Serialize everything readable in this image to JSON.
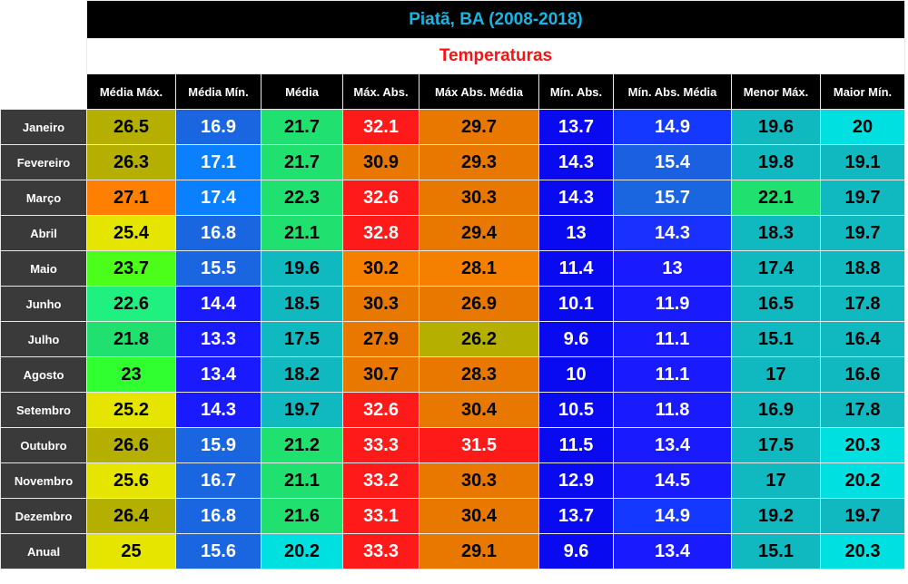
{
  "table": {
    "title": "Piatã, BA (2008-2018)",
    "subtitle": "Temperaturas",
    "columns": [
      "Média Máx.",
      "Média Mín.",
      "Média",
      "Máx. Abs.",
      "Máx Abs. Média",
      "Mín. Abs.",
      "Mín. Abs. Média",
      "Menor Máx.",
      "Maior Mín."
    ],
    "rows": [
      {
        "label": "Janeiro",
        "values": [
          26.5,
          16.9,
          21.7,
          32.1,
          29.7,
          13.7,
          14.9,
          19.6,
          20
        ],
        "colors": [
          "#b5b000",
          "#1a66e0",
          "#20e070",
          "#ff1a1a",
          "#e87800",
          "#0a0af0",
          "#1438ff",
          "#10b8c0",
          "#00e0e0"
        ]
      },
      {
        "label": "Fevereiro",
        "values": [
          26.3,
          17.1,
          21.7,
          30.9,
          29.3,
          14.3,
          15.4,
          19.8,
          19.1
        ],
        "colors": [
          "#b5b000",
          "#0a80ff",
          "#20e070",
          "#e87800",
          "#e87800",
          "#0a0af0",
          "#1a60e0",
          "#10b8c0",
          "#10b8c0"
        ]
      },
      {
        "label": "Março",
        "values": [
          27.1,
          17.4,
          22.3,
          32.6,
          30.3,
          14.3,
          15.7,
          22.1,
          19.7
        ],
        "colors": [
          "#ff8000",
          "#0a80ff",
          "#20e070",
          "#ff1a1a",
          "#e87800",
          "#0a0af0",
          "#1a66e0",
          "#20e070",
          "#10b8c0"
        ]
      },
      {
        "label": "Abril",
        "values": [
          25.4,
          16.8,
          21.1,
          32.8,
          29.4,
          13,
          14.3,
          18.3,
          19.7
        ],
        "colors": [
          "#e5e500",
          "#1a66e0",
          "#20e070",
          "#ff1a1a",
          "#e87800",
          "#0a0af0",
          "#1a30ff",
          "#10b8c0",
          "#10b8c0"
        ]
      },
      {
        "label": "Maio",
        "values": [
          23.7,
          15.5,
          19.6,
          30.2,
          28.1,
          11.4,
          13,
          17.4,
          18.8
        ],
        "colors": [
          "#4cff1a",
          "#1a66e0",
          "#10b8c0",
          "#f58000",
          "#f58000",
          "#0a0af0",
          "#1a1aff",
          "#10b8c0",
          "#10b8c0"
        ]
      },
      {
        "label": "Junho",
        "values": [
          22.6,
          14.4,
          18.5,
          30.3,
          26.9,
          10.1,
          11.9,
          16.5,
          17.8
        ],
        "colors": [
          "#20f080",
          "#1a1aff",
          "#10b8c0",
          "#e87800",
          "#e87800",
          "#0a0af0",
          "#1a1aff",
          "#10b8c0",
          "#10b8c0"
        ]
      },
      {
        "label": "Julho",
        "values": [
          21.8,
          13.3,
          17.5,
          27.9,
          26.2,
          9.6,
          11.1,
          15.1,
          16.4
        ],
        "colors": [
          "#20e070",
          "#1a1aff",
          "#10b8c0",
          "#e87800",
          "#b5b000",
          "#0a0af0",
          "#1a1aff",
          "#10b8c0",
          "#10b8c0"
        ]
      },
      {
        "label": "Agosto",
        "values": [
          23,
          13.4,
          18.2,
          30.7,
          28.3,
          10,
          11.1,
          17,
          16.6
        ],
        "colors": [
          "#30ff30",
          "#1a1aff",
          "#10b8c0",
          "#e87800",
          "#e87800",
          "#0a0af0",
          "#1a1aff",
          "#10b8c0",
          "#10b8c0"
        ]
      },
      {
        "label": "Setembro",
        "values": [
          25.2,
          14.3,
          19.7,
          32.6,
          30.4,
          10.5,
          11.8,
          16.9,
          17.8
        ],
        "colors": [
          "#e5e500",
          "#1a1aff",
          "#10b8c0",
          "#ff1a1a",
          "#e87800",
          "#0a0af0",
          "#1a1aff",
          "#10b8c0",
          "#10b8c0"
        ]
      },
      {
        "label": "Outubro",
        "values": [
          26.6,
          15.9,
          21.2,
          33.3,
          31.5,
          11.5,
          13.4,
          17.5,
          20.3
        ],
        "colors": [
          "#b5b000",
          "#1a66e0",
          "#20e070",
          "#ff1a1a",
          "#ff1a1a",
          "#0a0af0",
          "#1a1aff",
          "#10b8c0",
          "#00e0e0"
        ]
      },
      {
        "label": "Novembro",
        "values": [
          25.6,
          16.7,
          21.1,
          33.2,
          30.3,
          12.9,
          14.5,
          17,
          20.2
        ],
        "colors": [
          "#e5e500",
          "#1a66e0",
          "#20e070",
          "#ff1a1a",
          "#e87800",
          "#0a0af0",
          "#1a1aff",
          "#10b8c0",
          "#00e0e0"
        ]
      },
      {
        "label": "Dezembro",
        "values": [
          26.4,
          16.8,
          21.6,
          33.1,
          30.4,
          13.7,
          14.9,
          19.2,
          19.7
        ],
        "colors": [
          "#b5b000",
          "#1a66e0",
          "#20e070",
          "#ff1a1a",
          "#e87800",
          "#0a0af0",
          "#1438ff",
          "#10b8c0",
          "#10b8c0"
        ]
      },
      {
        "label": "Anual",
        "values": [
          25,
          15.6,
          20.2,
          33.3,
          29.1,
          9.6,
          13.4,
          15.1,
          20.3
        ],
        "colors": [
          "#e5e500",
          "#1a66e0",
          "#00e0e0",
          "#ff1a1a",
          "#e87800",
          "#0a0af0",
          "#1a1aff",
          "#10b8c0",
          "#00e0e0"
        ]
      }
    ]
  }
}
